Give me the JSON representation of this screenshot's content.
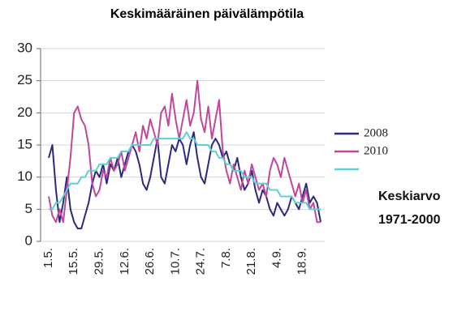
{
  "chart_data": {
    "type": "line",
    "title": "Keskimääräinen päivälämpötila",
    "categories": [
      "1.5.",
      null,
      null,
      null,
      null,
      null,
      null,
      "15.5.",
      null,
      null,
      null,
      null,
      null,
      null,
      "29.5.",
      null,
      null,
      null,
      null,
      null,
      null,
      "12.6.",
      null,
      null,
      null,
      null,
      null,
      null,
      "26.6.",
      null,
      null,
      null,
      null,
      null,
      null,
      "10.7.",
      null,
      null,
      null,
      null,
      null,
      null,
      "24.7.",
      null,
      null,
      null,
      null,
      null,
      null,
      "7.8.",
      null,
      null,
      null,
      null,
      null,
      null,
      "21.8.",
      null,
      null,
      null,
      null,
      null,
      null,
      "4.9.",
      null,
      null,
      null,
      null,
      null,
      null,
      "18.9.",
      null,
      null,
      null,
      null,
      null
    ],
    "series": [
      {
        "name": "2008",
        "color": "#2b2a7e",
        "values": [
          13,
          15,
          8,
          3,
          6,
          10,
          5,
          3,
          2,
          2,
          4,
          6,
          9,
          11,
          10,
          12,
          9,
          12,
          11,
          13,
          10,
          12,
          14,
          15,
          14,
          12,
          9,
          8,
          10,
          13,
          16,
          10,
          9,
          12,
          15,
          14,
          16,
          15,
          12,
          15,
          17,
          13,
          10,
          9,
          12,
          15,
          16,
          15,
          13,
          14,
          12,
          11,
          13,
          10,
          8,
          9,
          11,
          8,
          6,
          8,
          7,
          5,
          4,
          6,
          5,
          4,
          5,
          7,
          6,
          5,
          7,
          9,
          6,
          7,
          6,
          3
        ]
      },
      {
        "name": "2010",
        "color": "#c0489a",
        "values": [
          7,
          4,
          3,
          5,
          3,
          8,
          13,
          20,
          21,
          19,
          18,
          15,
          9,
          7,
          8,
          11,
          10,
          13,
          11,
          12,
          14,
          11,
          13,
          15,
          17,
          14,
          18,
          16,
          19,
          17,
          15,
          20,
          21,
          18,
          23,
          19,
          16,
          19,
          22,
          18,
          20,
          25,
          19,
          17,
          21,
          16,
          19,
          22,
          14,
          11,
          9,
          12,
          10,
          8,
          11,
          9,
          12,
          10,
          8,
          9,
          7,
          11,
          13,
          12,
          10,
          13,
          11,
          9,
          7,
          9,
          6,
          8,
          5,
          6,
          3,
          3
        ]
      },
      {
        "name": "Keskiarvo 1971-2000",
        "color": "#5bd0d6",
        "values": [
          5,
          5,
          6,
          6,
          7,
          8,
          9,
          9,
          9,
          10,
          10,
          11,
          11,
          11,
          12,
          12,
          12,
          13,
          13,
          13,
          14,
          14,
          14,
          15,
          15,
          15,
          15,
          15,
          15,
          16,
          16,
          16,
          16,
          16,
          16,
          16,
          16,
          16,
          17,
          16,
          16,
          15,
          15,
          15,
          15,
          14,
          14,
          13,
          13,
          12,
          12,
          11,
          11,
          11,
          10,
          10,
          10,
          9,
          9,
          9,
          9,
          8,
          8,
          8,
          7,
          7,
          7,
          7,
          6,
          6,
          6,
          6,
          5,
          5,
          5,
          5
        ]
      }
    ],
    "ylim": [
      0,
      30
    ],
    "yticks": [
      0,
      5,
      10,
      15,
      20,
      25,
      30
    ],
    "grid": true
  }
}
